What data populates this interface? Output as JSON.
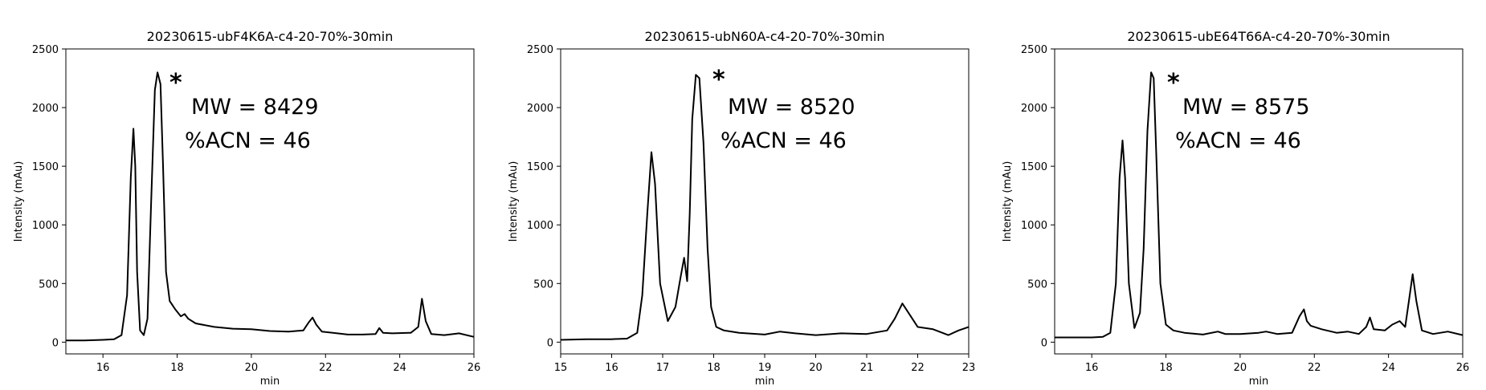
{
  "chart_data": [
    {
      "type": "line",
      "title": "20230615-ubF4K6A-c4-20-70%-30min",
      "xlabel": "min",
      "ylabel": "Intensity (mAu)",
      "xlim": [
        15,
        26
      ],
      "ylim": [
        -100,
        2500
      ],
      "xticks": [
        16,
        18,
        20,
        22,
        24,
        26
      ],
      "yticks": [
        0,
        500,
        1000,
        1500,
        2000,
        2500
      ],
      "annotations": {
        "star": "*",
        "mw": "MW = 8429",
        "acn": "%ACN = 46"
      },
      "series": [
        {
          "color": "#000000",
          "x": [
            15.0,
            15.5,
            16.0,
            16.3,
            16.5,
            16.65,
            16.75,
            16.82,
            16.87,
            16.92,
            17.0,
            17.1,
            17.2,
            17.3,
            17.4,
            17.47,
            17.55,
            17.62,
            17.7,
            17.8,
            17.95,
            18.1,
            18.2,
            18.3,
            18.5,
            19.0,
            19.5,
            20.0,
            20.5,
            21.0,
            21.4,
            21.55,
            21.65,
            21.75,
            21.9,
            22.2,
            22.6,
            23.0,
            23.35,
            23.45,
            23.55,
            23.8,
            24.3,
            24.5,
            24.6,
            24.7,
            24.85,
            25.2,
            25.6,
            26.0
          ],
          "y": [
            15,
            15,
            20,
            25,
            60,
            400,
            1400,
            1820,
            1500,
            600,
            100,
            60,
            200,
            1200,
            2150,
            2300,
            2200,
            1500,
            600,
            350,
            280,
            220,
            240,
            200,
            160,
            130,
            115,
            110,
            95,
            90,
            100,
            170,
            210,
            150,
            90,
            80,
            65,
            65,
            70,
            120,
            80,
            75,
            80,
            130,
            370,
            180,
            70,
            60,
            75,
            45
          ]
        }
      ]
    },
    {
      "type": "line",
      "title": "20230615-ubN60A-c4-20-70%-30min",
      "xlabel": "min",
      "ylabel": "Intensity (mAu)",
      "xlim": [
        15,
        23
      ],
      "ylim": [
        -100,
        2500
      ],
      "xticks": [
        15,
        16,
        17,
        18,
        19,
        20,
        21,
        22,
        23
      ],
      "yticks": [
        0,
        500,
        1000,
        1500,
        2000,
        2500
      ],
      "annotations": {
        "star": "*",
        "mw": "MW = 8520",
        "acn": "%ACN = 46"
      },
      "series": [
        {
          "color": "#000000",
          "x": [
            15.0,
            15.5,
            16.0,
            16.3,
            16.5,
            16.6,
            16.7,
            16.78,
            16.85,
            16.95,
            17.1,
            17.25,
            17.35,
            17.42,
            17.48,
            17.53,
            17.58,
            17.65,
            17.72,
            17.8,
            17.88,
            17.95,
            18.05,
            18.2,
            18.5,
            19.0,
            19.3,
            19.6,
            20.0,
            20.5,
            21.0,
            21.4,
            21.55,
            21.7,
            21.85,
            22.0,
            22.3,
            22.6,
            22.8,
            23.0
          ],
          "y": [
            20,
            25,
            25,
            30,
            80,
            400,
            1100,
            1620,
            1350,
            500,
            180,
            300,
            550,
            720,
            520,
            1100,
            1900,
            2280,
            2250,
            1700,
            800,
            300,
            130,
            100,
            80,
            65,
            90,
            75,
            60,
            75,
            70,
            100,
            200,
            330,
            230,
            130,
            110,
            60,
            100,
            130
          ]
        }
      ]
    },
    {
      "type": "line",
      "title": "20230615-ubE64T66A-c4-20-70%-30min",
      "xlabel": "min",
      "ylabel": "Intensity (mAu)",
      "xlim": [
        15,
        26
      ],
      "ylim": [
        -100,
        2500
      ],
      "xticks": [
        16,
        18,
        20,
        22,
        24,
        26
      ],
      "yticks": [
        0,
        500,
        1000,
        1500,
        2000,
        2500
      ],
      "annotations": {
        "star": "*",
        "mw": "MW = 8575",
        "acn": "%ACN = 46"
      },
      "series": [
        {
          "color": "#000000",
          "x": [
            15.0,
            15.5,
            16.0,
            16.3,
            16.5,
            16.65,
            16.75,
            16.83,
            16.9,
            17.0,
            17.15,
            17.3,
            17.4,
            17.5,
            17.6,
            17.67,
            17.75,
            17.85,
            18.0,
            18.2,
            18.5,
            19.0,
            19.4,
            19.6,
            20.0,
            20.5,
            20.7,
            21.0,
            21.4,
            21.6,
            21.72,
            21.8,
            21.9,
            22.2,
            22.6,
            22.9,
            23.2,
            23.4,
            23.5,
            23.6,
            23.9,
            24.1,
            24.3,
            24.45,
            24.55,
            24.65,
            24.75,
            24.9,
            25.2,
            25.6,
            26.0
          ],
          "y": [
            40,
            40,
            40,
            45,
            80,
            500,
            1400,
            1720,
            1400,
            500,
            120,
            250,
            800,
            1800,
            2300,
            2250,
            1500,
            500,
            150,
            100,
            80,
            65,
            90,
            70,
            70,
            80,
            90,
            70,
            80,
            220,
            280,
            180,
            140,
            110,
            80,
            90,
            70,
            130,
            210,
            110,
            100,
            150,
            180,
            130,
            350,
            580,
            350,
            100,
            70,
            90,
            60
          ]
        }
      ]
    }
  ]
}
